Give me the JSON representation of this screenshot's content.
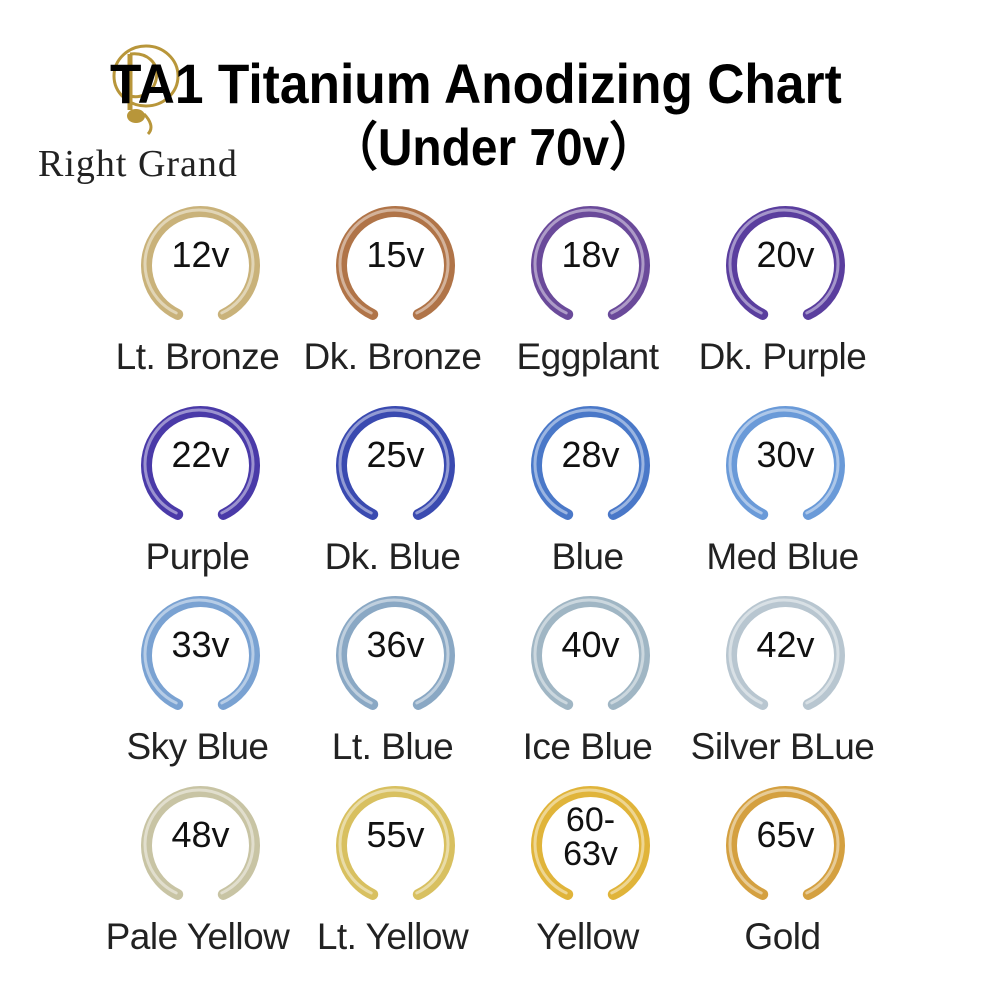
{
  "logo": {
    "text": "Right Grand",
    "icon": "music-note-logo-icon",
    "color": "#b8963a"
  },
  "header": {
    "title": "TA1 Titanium Anodizing Chart",
    "subtitle": "（Under 70v）"
  },
  "swatches": [
    {
      "voltage": "12v",
      "name": "Lt. Bronze",
      "color": "#c9b27a"
    },
    {
      "voltage": "15v",
      "name": "Dk. Bronze",
      "color": "#b07448"
    },
    {
      "voltage": "18v",
      "name": "Eggplant",
      "color": "#6a4a9a"
    },
    {
      "voltage": "20v",
      "name": "Dk. Purple",
      "color": "#5a3e9e"
    },
    {
      "voltage": "22v",
      "name": "Purple",
      "color": "#4a3aa8"
    },
    {
      "voltage": "25v",
      "name": "Dk. Blue",
      "color": "#3a4ab0"
    },
    {
      "voltage": "28v",
      "name": "Blue",
      "color": "#4a78c8"
    },
    {
      "voltage": "30v",
      "name": "Med Blue",
      "color": "#6a9ad8"
    },
    {
      "voltage": "33v",
      "name": "Sky Blue",
      "color": "#7aa2d2"
    },
    {
      "voltage": "36v",
      "name": "Lt. Blue",
      "color": "#8aa8c4"
    },
    {
      "voltage": "40v",
      "name": "Ice Blue",
      "color": "#a0b6c4"
    },
    {
      "voltage": "42v",
      "name": "Silver BLue",
      "color": "#b8c6d0"
    },
    {
      "voltage": "48v",
      "name": "Pale Yellow",
      "color": "#c8c4a4"
    },
    {
      "voltage": "55v",
      "name": "Lt. Yellow",
      "color": "#d8c060"
    },
    {
      "voltage": "60-63v",
      "name": "Yellow",
      "color": "#e0b43a"
    },
    {
      "voltage": "65v",
      "name": "Gold",
      "color": "#d4a040"
    }
  ]
}
